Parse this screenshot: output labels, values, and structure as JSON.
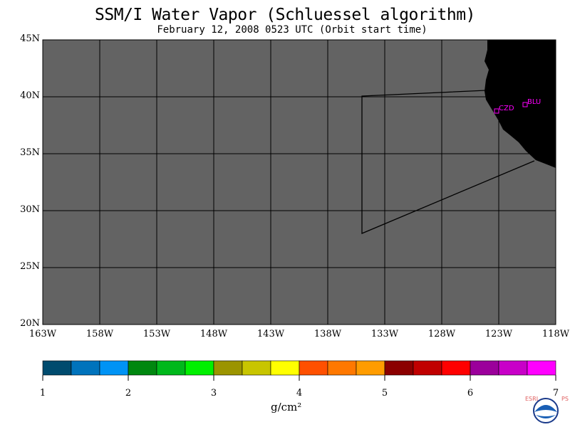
{
  "title": "SSM/I Water Vapor (Schluessel algorithm)",
  "subtitle": "February 12, 2008  0523 UTC  (Orbit start time)",
  "map": {
    "lat_labels": [
      "45N",
      "40N",
      "35N",
      "30N",
      "25N",
      "20N"
    ],
    "lon_labels": [
      "163W",
      "158W",
      "153W",
      "148W",
      "143W",
      "138W",
      "133W",
      "128W",
      "123W",
      "118W"
    ],
    "land_color": "#000000",
    "nodata_color": "#636363",
    "stations": [
      {
        "id": "CZD",
        "label": "CZD"
      },
      {
        "id": "BLU",
        "label": "BLU"
      }
    ],
    "station_color": "#ff00ff"
  },
  "colorbar": {
    "colors": [
      "#004b6e",
      "#0073bc",
      "#0093f5",
      "#00870f",
      "#00b81b",
      "#00f000",
      "#9b9400",
      "#c8c500",
      "#ffff00",
      "#ff5000",
      "#ff7800",
      "#ff9c00",
      "#8b0000",
      "#c00000",
      "#ff0000",
      "#9b009b",
      "#c800c8",
      "#ff00ff"
    ],
    "ticks": [
      "1",
      "2",
      "3",
      "4",
      "5",
      "6",
      "7"
    ],
    "units": "g/cm²"
  },
  "logo": {
    "left_text": "ESRL",
    "right_text": "PSD",
    "center_text": "NOAA"
  }
}
